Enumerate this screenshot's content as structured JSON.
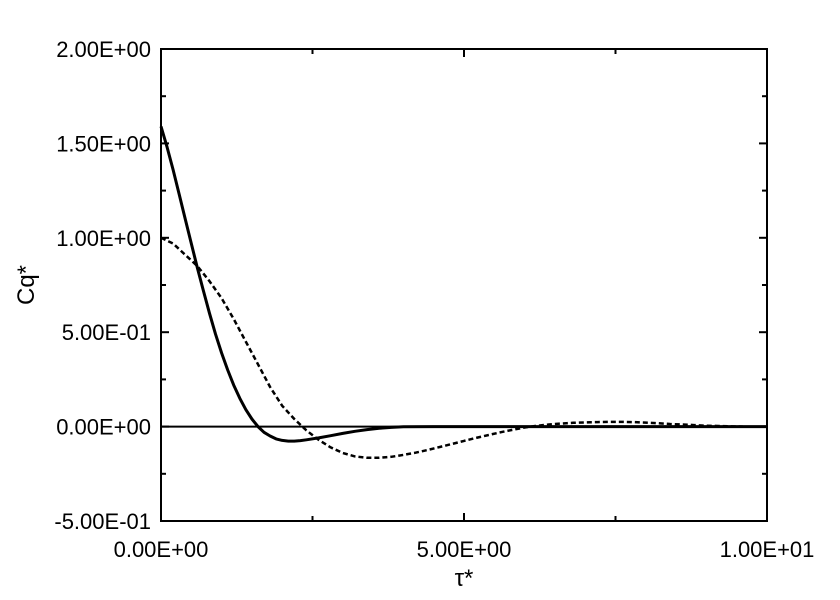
{
  "chart_data": {
    "type": "line",
    "title": "",
    "xlabel": "τ*",
    "ylabel": "Cq*",
    "xlim": [
      0,
      10
    ],
    "ylim": [
      -0.5,
      2.0
    ],
    "grid": false,
    "legend": "none",
    "x_ticks": [
      0,
      5,
      10
    ],
    "x_tick_labels": [
      "0.00E+00",
      "5.00E+00",
      "1.00E+01"
    ],
    "y_ticks": [
      -0.5,
      0,
      0.5,
      1.0,
      1.5,
      2.0
    ],
    "y_tick_labels": [
      "-5.00E-01",
      "0.00E+00",
      "5.00E-01",
      "1.00E+00",
      "1.50E+00",
      "2.00E+00"
    ],
    "reference_line_y": 0,
    "series": [
      {
        "style": "solid",
        "color": "#000000",
        "x": [
          0,
          0.1,
          0.2,
          0.3,
          0.4,
          0.5,
          0.6,
          0.7,
          0.8,
          0.9,
          1.0,
          1.1,
          1.2,
          1.3,
          1.4,
          1.5,
          1.6,
          1.7,
          1.8,
          1.9,
          2.0,
          2.1,
          2.2,
          2.3,
          2.4,
          2.6,
          2.8,
          3.0,
          3.2,
          3.4,
          3.6,
          3.8,
          4.0,
          4.5,
          5.0,
          6.0,
          7.0,
          8.0,
          9.0,
          10.0
        ],
        "y": [
          1.59,
          1.48,
          1.36,
          1.23,
          1.1,
          0.97,
          0.84,
          0.72,
          0.6,
          0.49,
          0.39,
          0.3,
          0.22,
          0.15,
          0.09,
          0.04,
          0.0,
          -0.03,
          -0.05,
          -0.065,
          -0.073,
          -0.077,
          -0.077,
          -0.074,
          -0.07,
          -0.06,
          -0.048,
          -0.036,
          -0.025,
          -0.016,
          -0.009,
          -0.004,
          -0.001,
          0.0,
          0.0,
          0.0,
          0.0,
          0.0,
          0.0,
          0.0
        ]
      },
      {
        "style": "dashed",
        "color": "#000000",
        "x": [
          0,
          0.2,
          0.4,
          0.6,
          0.8,
          1.0,
          1.2,
          1.4,
          1.6,
          1.8,
          2.0,
          2.2,
          2.4,
          2.6,
          2.8,
          3.0,
          3.2,
          3.4,
          3.6,
          3.8,
          4.0,
          4.2,
          4.4,
          4.6,
          4.8,
          5.0,
          5.2,
          5.4,
          5.6,
          5.8,
          6.0,
          6.2,
          6.4,
          6.6,
          6.8,
          7.0,
          7.2,
          7.4,
          7.6,
          7.8,
          8.0,
          8.2,
          8.4,
          8.6,
          8.8,
          9.0,
          9.2,
          9.4,
          9.6
        ],
        "y": [
          1.0,
          0.97,
          0.91,
          0.85,
          0.77,
          0.68,
          0.57,
          0.45,
          0.33,
          0.21,
          0.11,
          0.04,
          -0.02,
          -0.07,
          -0.11,
          -0.14,
          -0.158,
          -0.165,
          -0.165,
          -0.16,
          -0.15,
          -0.138,
          -0.124,
          -0.108,
          -0.092,
          -0.076,
          -0.06,
          -0.045,
          -0.03,
          -0.017,
          -0.005,
          0.004,
          0.011,
          0.016,
          0.02,
          0.022,
          0.024,
          0.025,
          0.025,
          0.024,
          0.021,
          0.018,
          0.014,
          0.011,
          0.008,
          0.005,
          0.003,
          0.001,
          0.0
        ]
      }
    ]
  }
}
